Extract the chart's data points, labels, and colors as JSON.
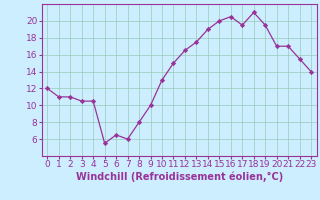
{
  "x": [
    0,
    1,
    2,
    3,
    4,
    5,
    6,
    7,
    8,
    9,
    10,
    11,
    12,
    13,
    14,
    15,
    16,
    17,
    18,
    19,
    20,
    21,
    22,
    23
  ],
  "y": [
    12,
    11,
    11,
    10.5,
    10.5,
    5.5,
    6.5,
    6,
    8,
    10,
    13,
    15,
    16.5,
    17.5,
    19,
    20,
    20.5,
    19.5,
    21,
    19.5,
    17,
    17,
    15.5,
    14
  ],
  "line_color": "#993399",
  "marker": "D",
  "marker_size": 2.2,
  "bg_color": "#cceeff",
  "grid_color": "#99ccbb",
  "xlabel": "Windchill (Refroidissement éolien,°C)",
  "xlabel_color": "#993399",
  "tick_color": "#993399",
  "spine_color": "#993399",
  "ylim": [
    4,
    22
  ],
  "xlim": [
    -0.5,
    23.5
  ],
  "yticks": [
    6,
    8,
    10,
    12,
    14,
    16,
    18,
    20
  ],
  "xticks": [
    0,
    1,
    2,
    3,
    4,
    5,
    6,
    7,
    8,
    9,
    10,
    11,
    12,
    13,
    14,
    15,
    16,
    17,
    18,
    19,
    20,
    21,
    22,
    23
  ],
  "font_size": 6.5,
  "xlabel_fontsize": 7.0
}
